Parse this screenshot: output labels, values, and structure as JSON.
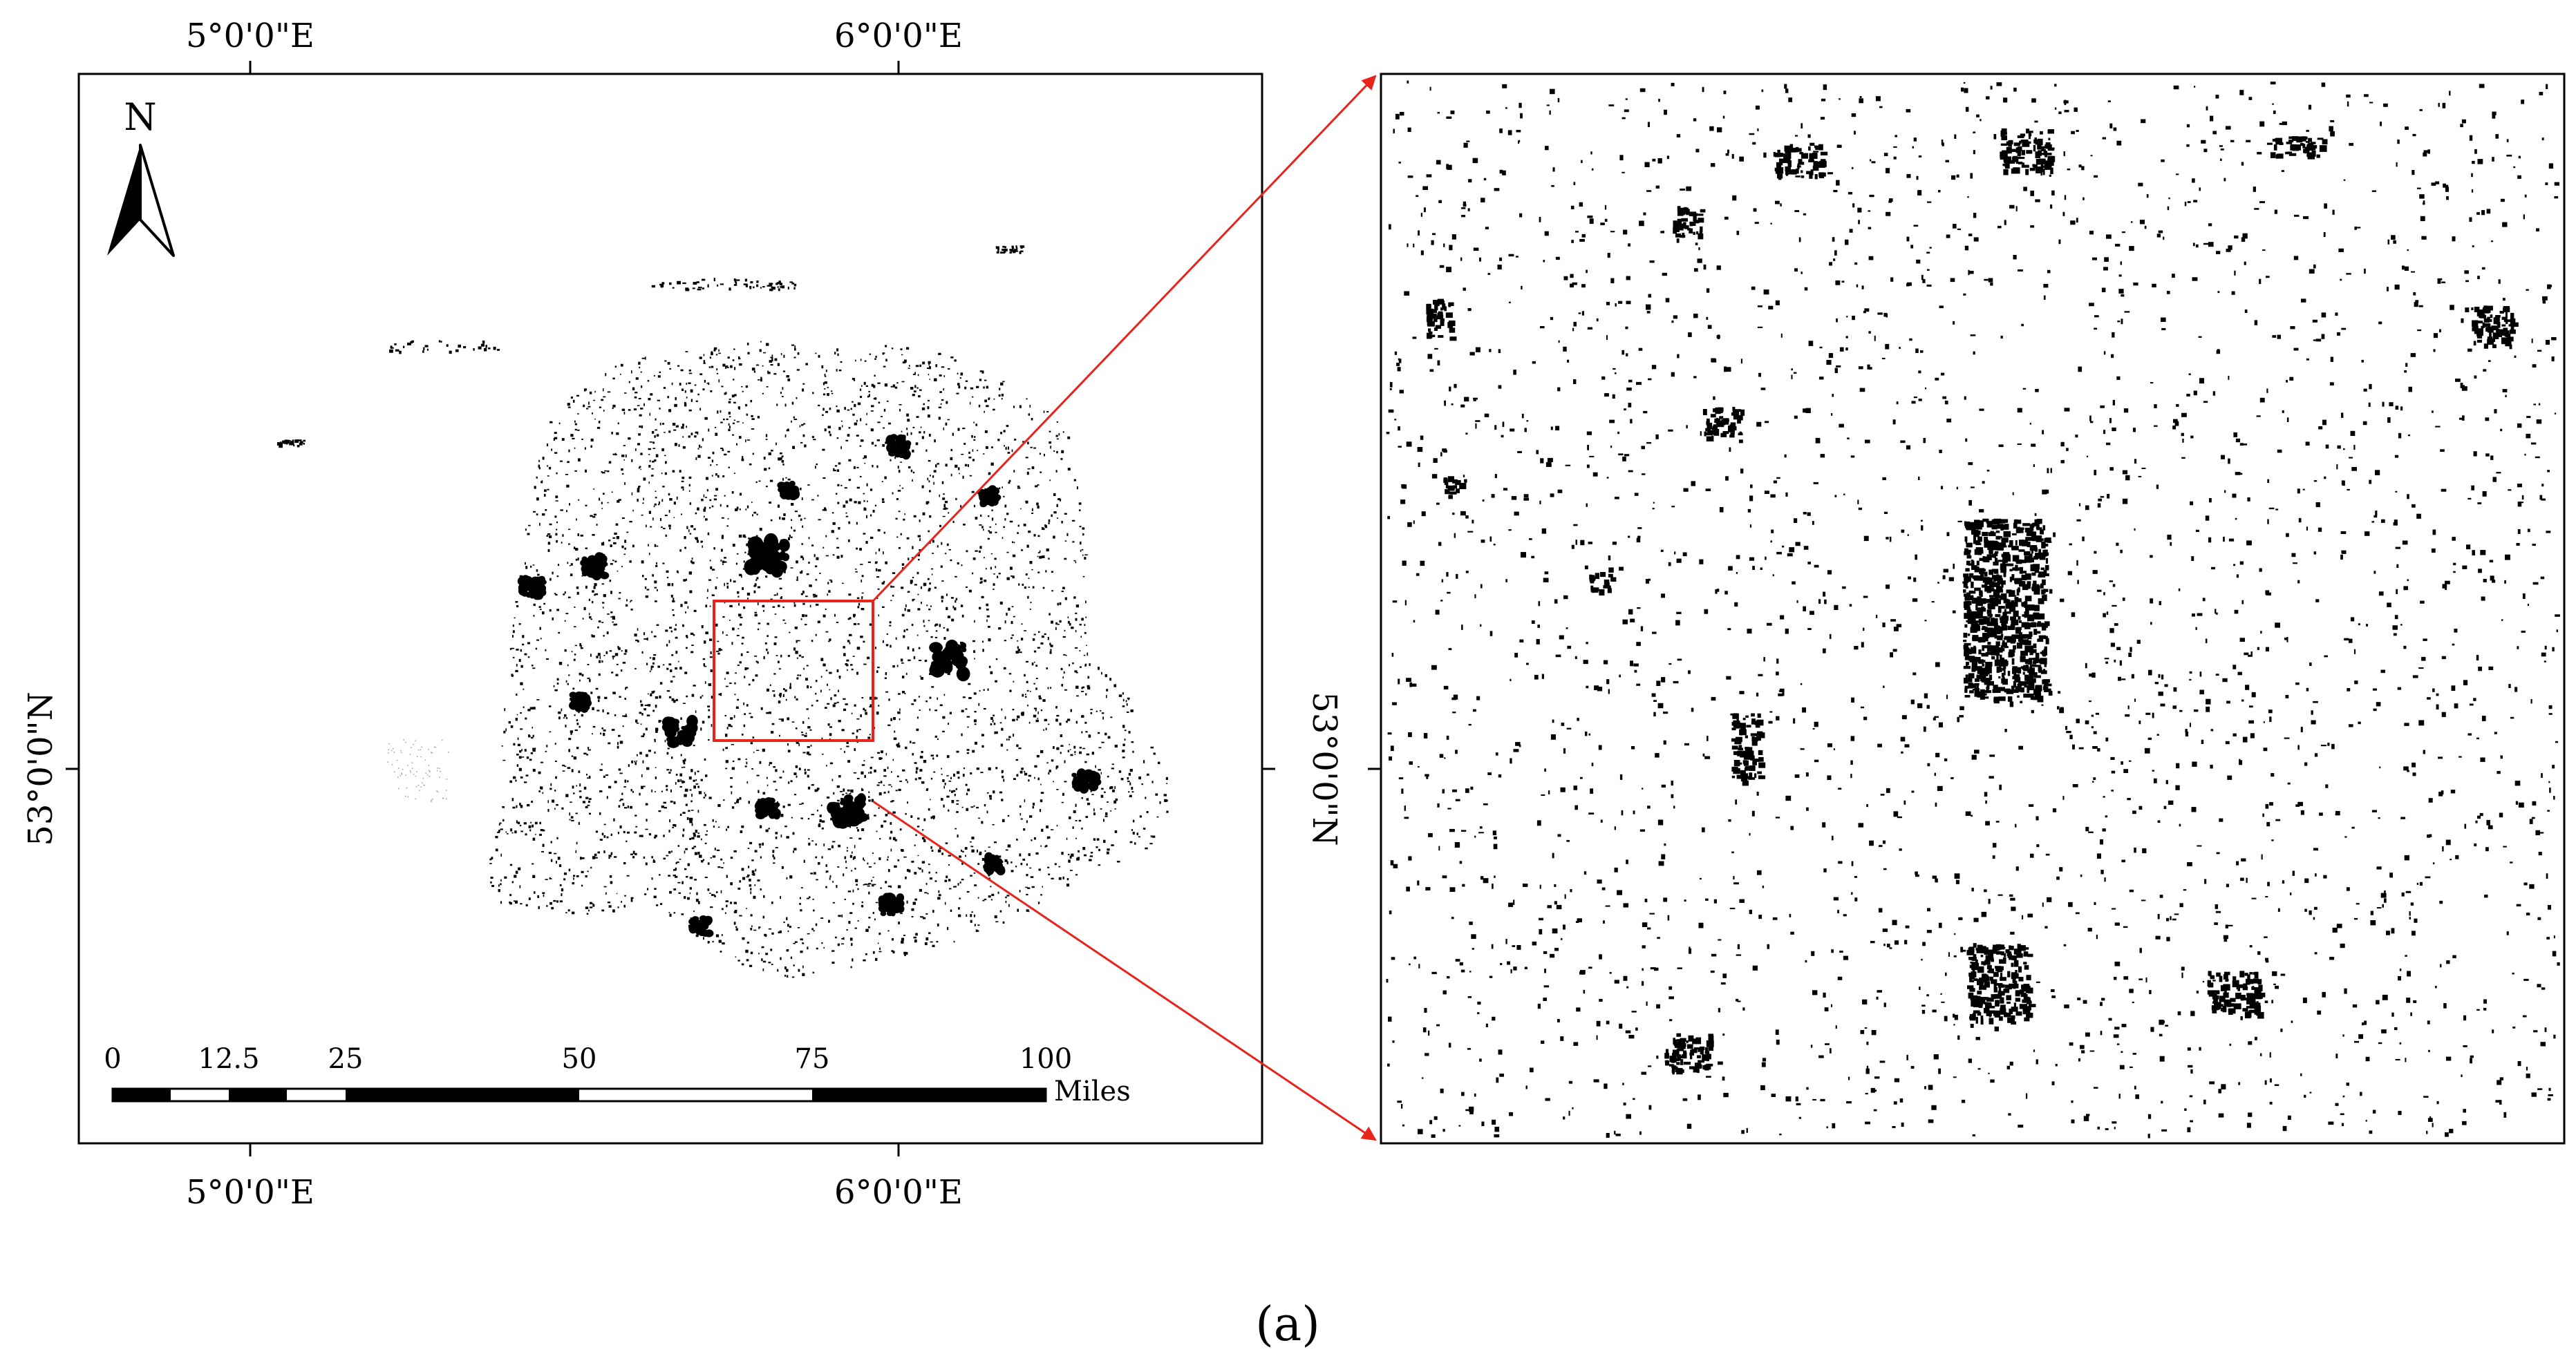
{
  "left_map": {
    "lon_labels": [
      "5°0'0\"E",
      "6°0'0\"E"
    ],
    "lat_label": "53°0'0\"N",
    "north_arrow_label": "N",
    "scale_bar": {
      "ticks": [
        "0",
        "12.5",
        "25",
        "50",
        "75",
        "100"
      ],
      "unit": "Miles"
    }
  },
  "right_map": {
    "lat_label": "53°0'0\"N"
  },
  "colors": {
    "frame": "#000000",
    "buildings": "#000000",
    "highlight": "#e8231a",
    "background": "#ffffff"
  },
  "caption": "(a)"
}
